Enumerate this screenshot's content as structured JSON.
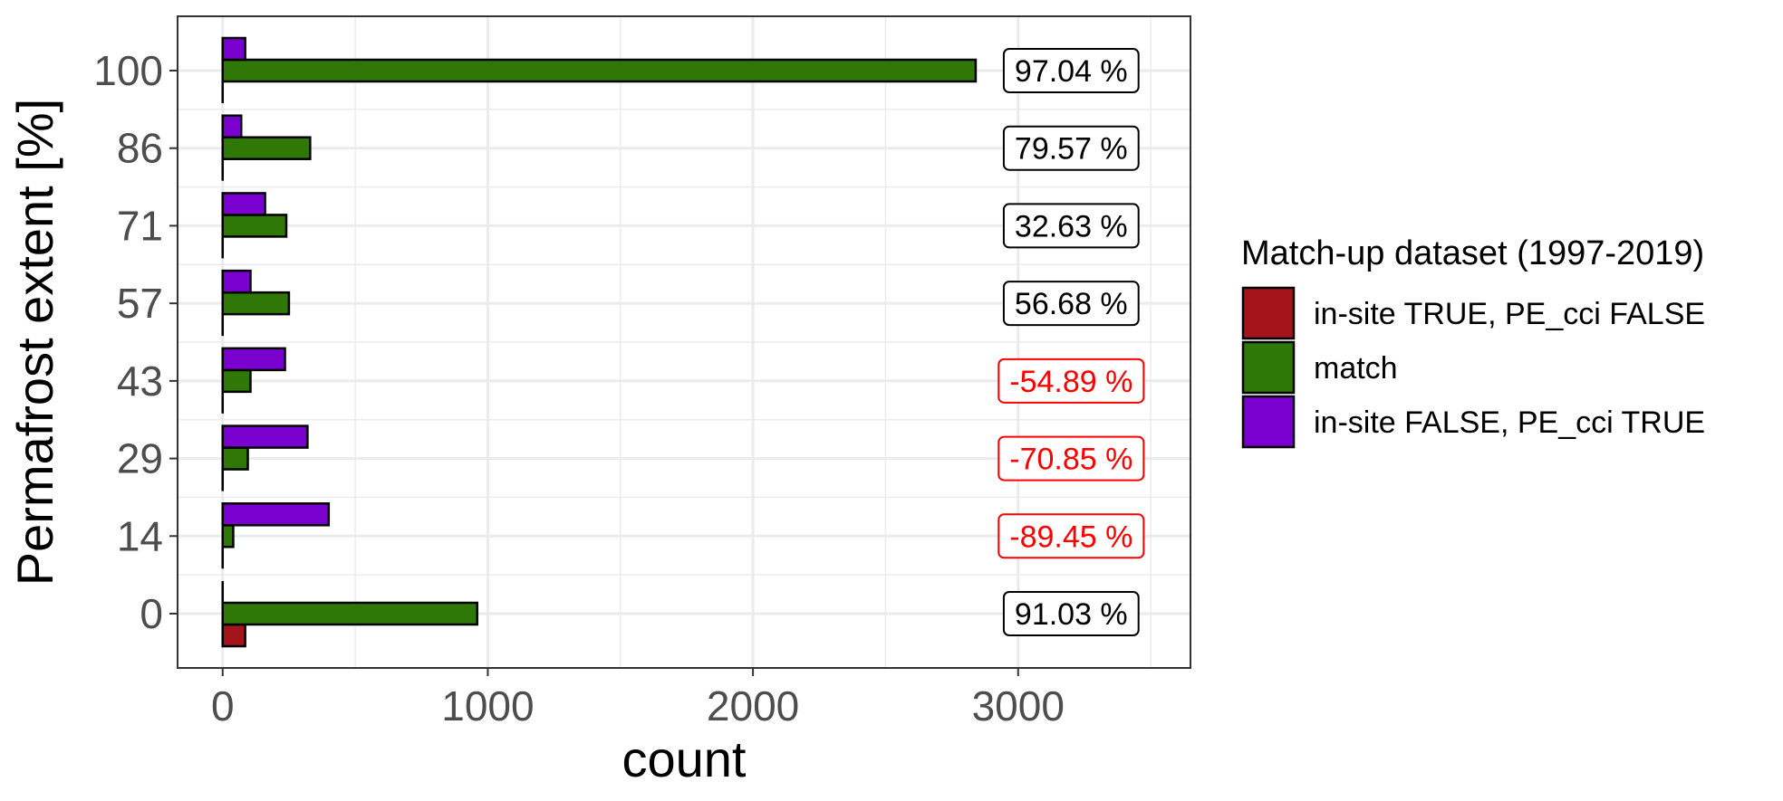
{
  "chart_data": {
    "type": "bar",
    "orientation": "horizontal",
    "xlabel": "count",
    "ylabel": "Permafrost extent [%]",
    "xlim": [
      -170,
      3650
    ],
    "x_ticks": [
      0,
      1000,
      2000,
      3000
    ],
    "x_minor_ticks": [
      500,
      1500,
      2500,
      3500
    ],
    "categories": [
      "0",
      "14",
      "29",
      "43",
      "57",
      "71",
      "86",
      "100"
    ],
    "grid": true,
    "series": [
      {
        "name": "in-site TRUE, PE_cci FALSE",
        "color": "#a3151a",
        "values": [
          85,
          0,
          0,
          0,
          0,
          0,
          0,
          0
        ]
      },
      {
        "name": "match",
        "color": "#2f7808",
        "values": [
          960,
          40,
          95,
          105,
          250,
          240,
          330,
          2840
        ]
      },
      {
        "name": "in-site FALSE, PE_cci TRUE",
        "color": "#7a00d0",
        "values": [
          0,
          400,
          320,
          235,
          105,
          160,
          70,
          85
        ]
      }
    ],
    "annotations": [
      {
        "category": "0",
        "text": "91.03 %",
        "color": "#000000"
      },
      {
        "category": "14",
        "text": "-89.45 %",
        "color": "#ff0000"
      },
      {
        "category": "29",
        "text": "-70.85 %",
        "color": "#ff0000"
      },
      {
        "category": "43",
        "text": "-54.89 %",
        "color": "#ff0000"
      },
      {
        "category": "57",
        "text": "56.68 %",
        "color": "#000000"
      },
      {
        "category": "71",
        "text": "32.63 %",
        "color": "#000000"
      },
      {
        "category": "86",
        "text": "79.57 %",
        "color": "#000000"
      },
      {
        "category": "100",
        "text": "97.04 %",
        "color": "#000000"
      }
    ],
    "annotation_x": 3200,
    "legend": {
      "title": "Match-up dataset (1997-2019)",
      "position": "right"
    }
  }
}
